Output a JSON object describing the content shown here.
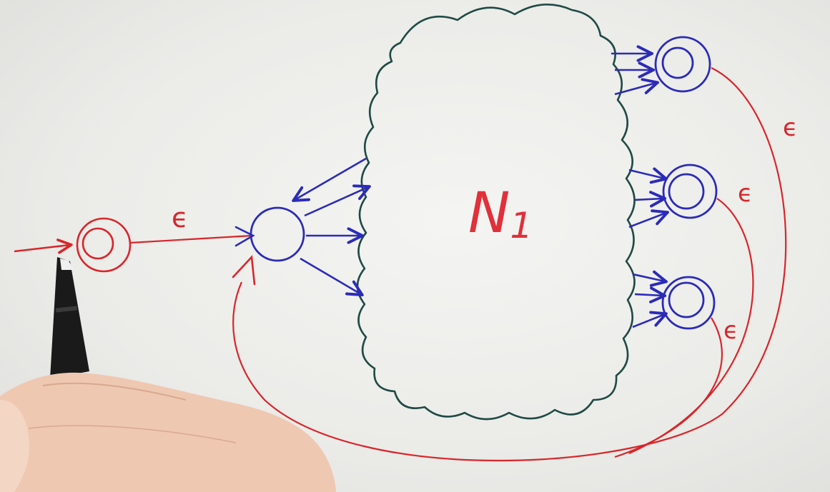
{
  "diagram": {
    "nfa_label": "N",
    "nfa_label_subscript": "1",
    "epsilon_labels": [
      "ϵ",
      "ϵ",
      "ϵ",
      "ϵ"
    ],
    "colors": {
      "cloud": "#1f4a45",
      "states": "#2b2bb8",
      "epsilon": "#d8262a",
      "label": "#e0303a",
      "paper": "#ececea",
      "skin": "#efc8b2",
      "marker": "#1a1a1a"
    },
    "nodes": [
      {
        "id": "new-start-state",
        "kind": "accept"
      },
      {
        "id": "old-start-state",
        "kind": "normal"
      },
      {
        "id": "accept-state-1",
        "kind": "accept"
      },
      {
        "id": "accept-state-2",
        "kind": "accept"
      },
      {
        "id": "accept-state-3",
        "kind": "accept"
      }
    ],
    "icons": [
      "marker-pen-icon",
      "hand-icon"
    ]
  }
}
